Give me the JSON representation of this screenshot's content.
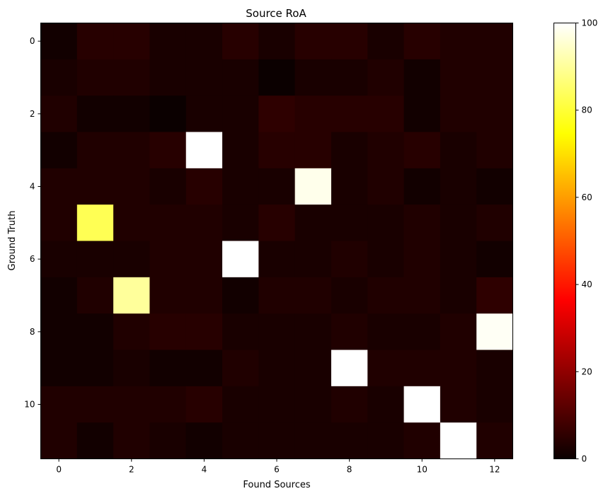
{
  "chart_data": {
    "type": "heatmap",
    "title": "Source RoA",
    "xlabel": "Found Sources",
    "ylabel": "Ground Truth",
    "colormap": "hot",
    "vmin": 0,
    "vmax": 100,
    "x_ticks": [
      0,
      2,
      4,
      6,
      8,
      10,
      12
    ],
    "y_ticks": [
      0,
      2,
      4,
      6,
      8,
      10
    ],
    "colorbar_ticks": [
      0,
      20,
      40,
      60,
      80,
      100
    ],
    "n_cols": 13,
    "n_rows": 12,
    "values": [
      [
        1,
        4,
        4,
        2,
        2,
        4,
        2,
        4,
        4,
        2,
        4,
        3,
        3
      ],
      [
        2,
        3,
        3,
        2,
        2,
        2,
        0,
        2,
        2,
        3,
        1,
        3,
        3
      ],
      [
        3,
        1,
        1,
        0,
        2,
        2,
        5,
        4,
        4,
        4,
        1,
        3,
        3
      ],
      [
        1,
        3,
        3,
        4,
        100,
        2,
        4,
        4,
        2,
        3,
        4,
        2,
        3
      ],
      [
        3,
        3,
        3,
        2,
        4,
        2,
        2,
        98,
        2,
        3,
        1,
        2,
        1
      ],
      [
        3,
        83,
        3,
        3,
        3,
        2,
        4,
        2,
        2,
        2,
        3,
        2,
        3
      ],
      [
        2,
        2,
        2,
        3,
        3,
        100,
        2,
        2,
        3,
        2,
        3,
        2,
        1
      ],
      [
        1,
        3,
        90,
        3,
        3,
        1,
        3,
        3,
        2,
        3,
        3,
        2,
        5
      ],
      [
        1,
        1,
        3,
        4,
        4,
        2,
        2,
        2,
        3,
        2,
        2,
        3,
        99
      ],
      [
        1,
        1,
        2,
        1,
        1,
        3,
        2,
        2,
        100,
        3,
        3,
        3,
        2
      ],
      [
        3,
        3,
        3,
        3,
        4,
        2,
        2,
        2,
        3,
        2,
        100,
        3,
        2
      ],
      [
        3,
        1,
        3,
        2,
        1,
        2,
        2,
        2,
        2,
        2,
        3,
        100,
        3
      ]
    ]
  }
}
